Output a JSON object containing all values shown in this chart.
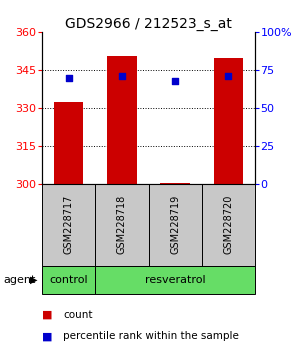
{
  "title": "GDS2966 / 212523_s_at",
  "samples": [
    "GSM228717",
    "GSM228718",
    "GSM228719",
    "GSM228720"
  ],
  "count_values": [
    332.5,
    350.5,
    300.5,
    349.5
  ],
  "percentile_values": [
    70,
    71,
    68,
    71
  ],
  "ylim_left": [
    300,
    360
  ],
  "ylim_right": [
    0,
    100
  ],
  "yticks_left": [
    300,
    315,
    330,
    345,
    360
  ],
  "yticks_right": [
    0,
    25,
    50,
    75,
    100
  ],
  "ytick_labels_right": [
    "0",
    "25",
    "50",
    "75",
    "100%"
  ],
  "bar_color": "#cc0000",
  "square_color": "#0000cc",
  "bar_width": 0.55,
  "hgrid_ticks": [
    315,
    330,
    345
  ],
  "sample_box_color": "#c8c8c8",
  "agent_box_color": "#66dd66",
  "title_fontsize": 10,
  "tick_fontsize": 8,
  "label_fontsize": 8,
  "sample_fontsize": 7,
  "agent_fontsize": 8,
  "legend_fontsize": 7.5
}
